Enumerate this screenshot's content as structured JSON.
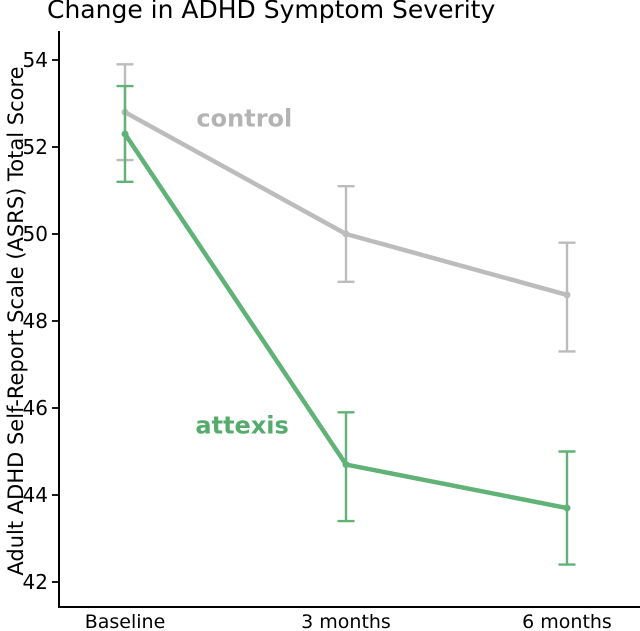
{
  "chart_data": {
    "type": "line",
    "title": "Change in ADHD Symptom Severity",
    "xlabel": "",
    "ylabel": "Adult ADHD Self-Report Scale (ASRS) Total Score",
    "categories": [
      "Baseline",
      "3 months",
      "6 months"
    ],
    "yticks": [
      54,
      52,
      50,
      48,
      46,
      44,
      42
    ],
    "ylim": [
      41.4,
      54.7
    ],
    "grid": false,
    "legend_position": "inline-labels-on-lines",
    "error_bars": true,
    "colors": {
      "control": "#bcbcbc",
      "attexis": "#61b276",
      "axis": "#000000",
      "background": "#ffffff"
    },
    "series": [
      {
        "name": "control",
        "label": "control",
        "color": "#bcbcbc",
        "label_color": "#b3b3b3",
        "values": [
          52.8,
          50.0,
          48.6
        ],
        "err_low": [
          51.7,
          48.9,
          47.3
        ],
        "err_high": [
          53.9,
          51.1,
          49.8
        ],
        "label_pos": {
          "x_index": 0.54,
          "y_value": 52.65
        }
      },
      {
        "name": "attexis",
        "label": "attexis",
        "color": "#61b276",
        "label_color": "#55ab6c",
        "values": [
          52.3,
          44.7,
          43.7
        ],
        "err_low": [
          51.2,
          43.4,
          42.4
        ],
        "err_high": [
          53.4,
          45.9,
          45.0
        ],
        "label_pos": {
          "x_index": 0.53,
          "y_value": 45.6
        }
      }
    ]
  }
}
